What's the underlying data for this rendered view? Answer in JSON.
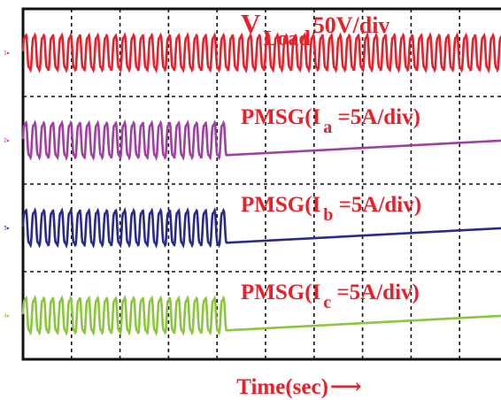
{
  "chart_data": {
    "type": "line",
    "xlabel": "Time(sec)",
    "xlabel_arrow": "⟶",
    "grid": true,
    "grid_divisions": {
      "x": 10,
      "y": 4
    },
    "series": [
      {
        "channel": "1",
        "marker": "1▸",
        "label_parts": [
          "V",
          "Load",
          "50V/div"
        ],
        "color": "#e8202a",
        "shape": "sine",
        "amplitude_div": 0.25,
        "cycles_visible": 54,
        "active_until_div": 10
      },
      {
        "channel": "2",
        "marker": "2▸",
        "label_parts": [
          "PMSG(I",
          "a",
          " =5A/div)"
        ],
        "color": "#a040a0",
        "shape": "sine",
        "amplitude_div": 0.25,
        "cycles_visible": 54,
        "active_until_div": 4.2
      },
      {
        "channel": "3",
        "marker": "3▸",
        "label_parts": [
          "PMSG(I",
          "b",
          " =5A/div)"
        ],
        "color": "#2a2a8c",
        "shape": "sine",
        "amplitude_div": 0.25,
        "cycles_visible": 54,
        "active_until_div": 4.2
      },
      {
        "channel": "4",
        "marker": "4▸",
        "label_parts": [
          "PMSG(I",
          "c",
          " =5A/div)"
        ],
        "color": "#8cc63f",
        "shape": "sine",
        "amplitude_div": 0.25,
        "cycles_visible": 54,
        "active_until_div": 4.2
      }
    ]
  }
}
